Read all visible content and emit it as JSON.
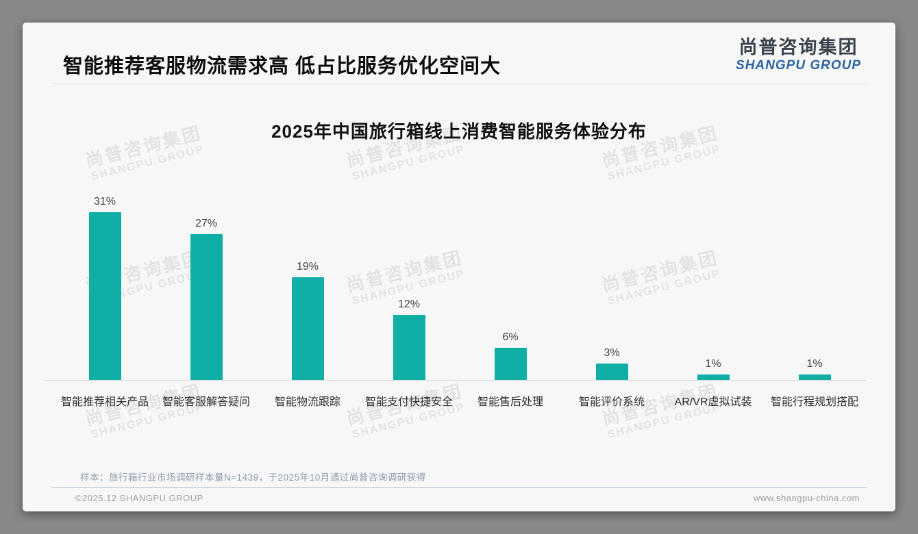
{
  "header": {
    "title": "智能推荐客服物流需求高 低占比服务优化空间大",
    "logo_cn": "尚普咨询集团",
    "logo_en": "SHANGPU GROUP"
  },
  "watermark": {
    "line1": "尚普咨询集团",
    "line2": "SHANGPU GROUP"
  },
  "chart_data": {
    "type": "bar",
    "title": "2025年中国旅行箱线上消费智能服务体验分布",
    "categories": [
      "智能推荐相关产品",
      "智能客服解答疑问",
      "智能物流跟踪",
      "智能支付快捷安全",
      "智能售后处理",
      "智能评价系统",
      "AR/VR虚拟试装",
      "智能行程规划搭配"
    ],
    "values": [
      31,
      27,
      19,
      12,
      6,
      3,
      1,
      1
    ],
    "data_labels": [
      "31%",
      "27%",
      "19%",
      "12%",
      "6%",
      "3%",
      "1%",
      "1%"
    ],
    "bar_color": "#0fafa5",
    "xlabel": "",
    "ylabel": "",
    "ylim": [
      0,
      31
    ],
    "grid": false,
    "legend": false
  },
  "note": "样本：旅行箱行业市场调研样本量N=1439，于2025年10月通过尚普咨询调研获得",
  "footer": {
    "copyright": "©2025.12 SHANGPU GROUP",
    "website": "www.shangpu-china.com"
  },
  "colors": {
    "bar": "#0fafa5",
    "logo_blue": "#2a62a5",
    "outer_background": "#888888",
    "card_background": "#f7f7f8"
  }
}
